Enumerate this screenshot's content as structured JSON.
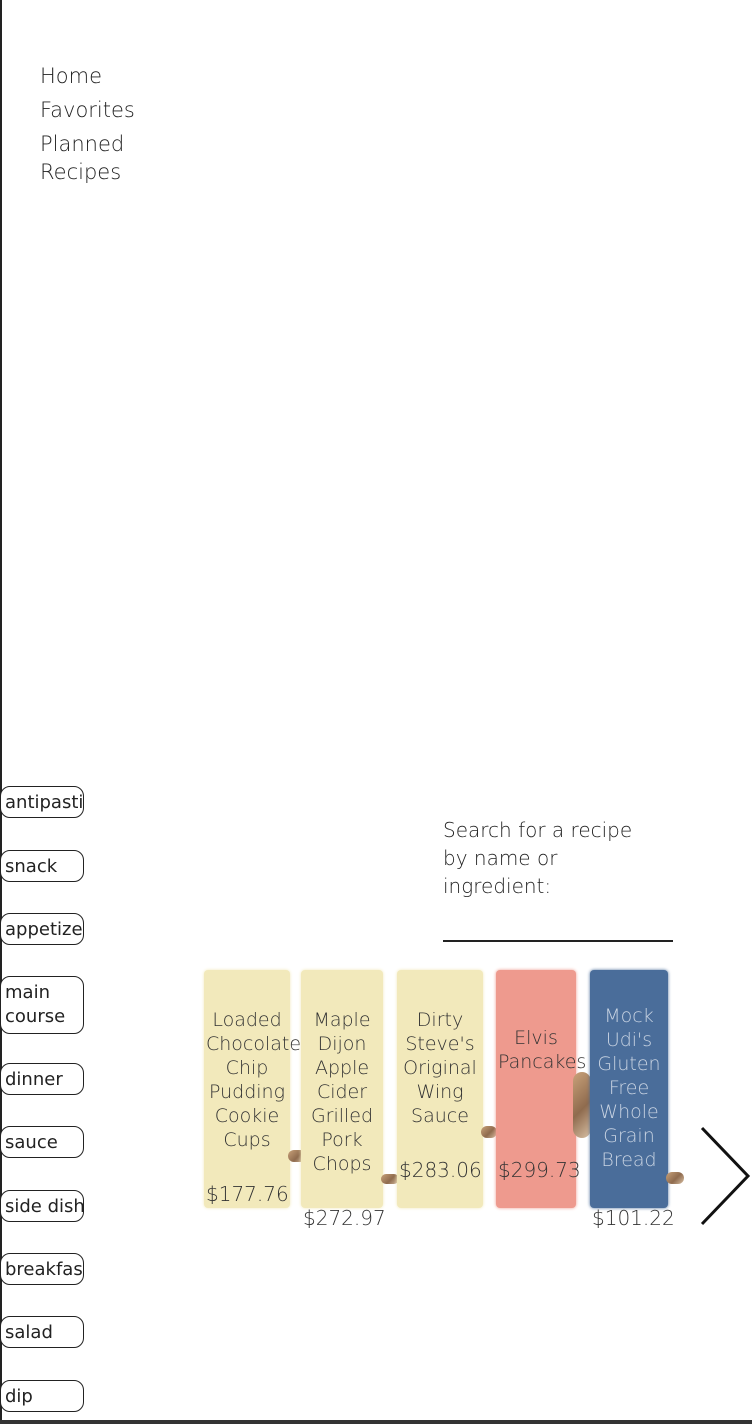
{
  "nav": {
    "home": "Home",
    "favorites": "Favorites",
    "planned_line1": "Planned",
    "planned_line2": "Recipes"
  },
  "categories": [
    "antipasti",
    "snack",
    "appetizer",
    "main course",
    "dinner",
    "sauce",
    "side dish",
    "breakfast",
    "salad",
    "dip"
  ],
  "search": {
    "label": "Search for a recipe by name or ingredient:",
    "value": "",
    "placeholder": ""
  },
  "recipes": [
    {
      "title": "Loaded Chocolate Chip Pudding Cookie Cups",
      "price": "$177.76",
      "color": "#f2e9bb"
    },
    {
      "title": "Maple Dijon Apple Cider Grilled Pork Chops",
      "price": "$272.97",
      "color": "#f2e9bb"
    },
    {
      "title": "Dirty Steve's Original Wing Sauce",
      "price": "$283.06",
      "color": "#f2e9bb"
    },
    {
      "title": "Elvis Pancakes",
      "price": "$299.73",
      "color": "#ee9a8e"
    },
    {
      "title": "Mock Udi's Gluten Free Whole Grain Bread",
      "price": "$101.22",
      "color": "#4a6d9a"
    }
  ],
  "icons": {
    "next": "chevron-right-icon"
  }
}
